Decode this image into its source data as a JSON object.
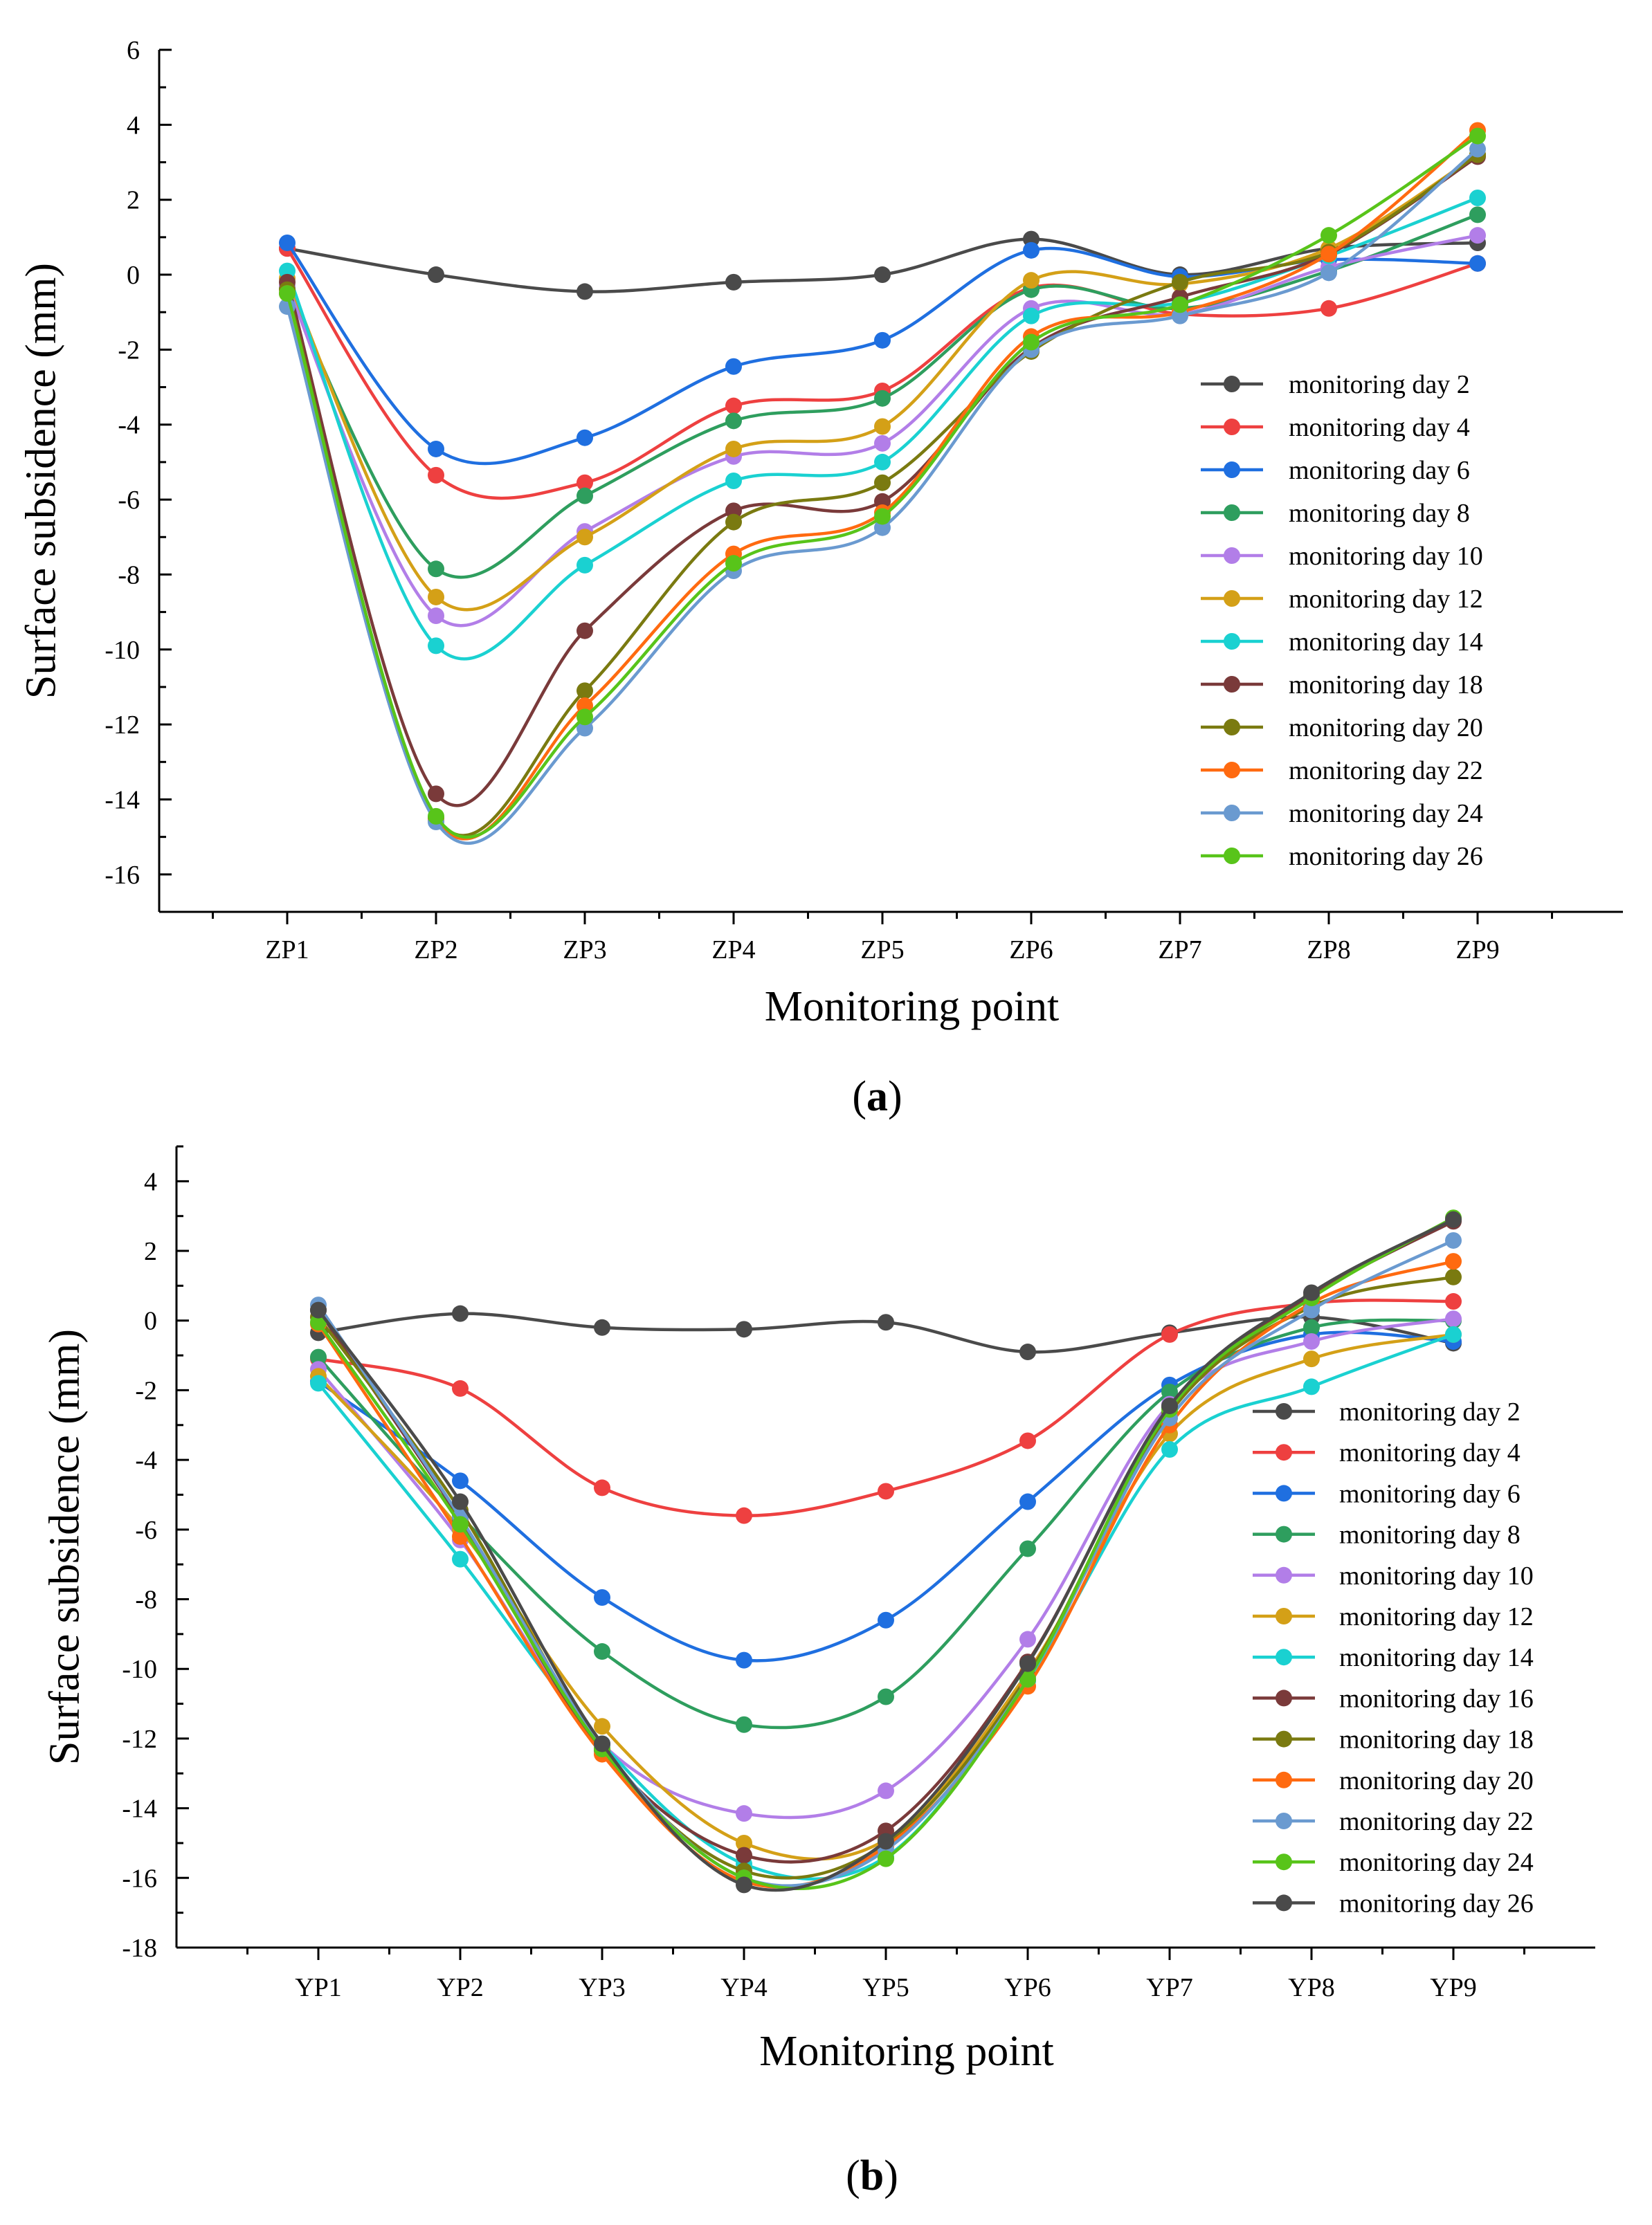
{
  "colors": {
    "monitoring day 2": "#4a4a4a",
    "monitoring day 4": "#ee4040",
    "monitoring day 6": "#1f6fe0",
    "monitoring day 8": "#2e9e5e",
    "monitoring day 10": "#b27ee8",
    "monitoring day 12": "#d4a017",
    "monitoring day 14": "#1ad1d1",
    "monitoring day 16": "#7a3a3a",
    "monitoring day 18": "#7a7a10",
    "monitoring day 20": "#ff6a10",
    "monitoring day 22": "#6a9ad0",
    "monitoring day 24": "#58c41a",
    "monitoring day 26": "#4a4a4a"
  },
  "chart_data": [
    {
      "type": "line",
      "caption": "(a)",
      "caption_bold": "a",
      "xlabel": "Monitoring point",
      "ylabel": "Surface subsidence (mm)",
      "ylim": [
        -17,
        6
      ],
      "yticks": [
        6,
        4,
        2,
        0,
        -2,
        -4,
        -6,
        -8,
        -10,
        -12,
        -14,
        -16
      ],
      "categories": [
        "ZP1",
        "ZP2",
        "ZP3",
        "ZP4",
        "ZP5",
        "ZP6",
        "ZP7",
        "ZP8",
        "ZP9"
      ],
      "series": [
        {
          "name": "monitoring day 2",
          "color": "#4a4a4a",
          "values": [
            0.7,
            0.0,
            -0.45,
            -0.2,
            0.0,
            0.95,
            0.0,
            0.7,
            0.85
          ]
        },
        {
          "name": "monitoring day 4",
          "color": "#ee4040",
          "values": [
            0.7,
            -5.35,
            -5.55,
            -3.5,
            -3.1,
            -0.35,
            -1.05,
            -0.9,
            0.3
          ]
        },
        {
          "name": "monitoring day 6",
          "color": "#1f6fe0",
          "values": [
            0.85,
            -4.65,
            -4.35,
            -2.45,
            -1.75,
            0.65,
            -0.05,
            0.4,
            0.3
          ]
        },
        {
          "name": "monitoring day 8",
          "color": "#2e9e5e",
          "values": [
            -0.35,
            -7.85,
            -5.9,
            -3.9,
            -3.3,
            -0.4,
            -0.9,
            0.1,
            1.6
          ]
        },
        {
          "name": "monitoring day 10",
          "color": "#b27ee8",
          "values": [
            -0.3,
            -9.1,
            -6.85,
            -4.85,
            -4.5,
            -0.9,
            -1.05,
            0.2,
            1.05
          ]
        },
        {
          "name": "monitoring day 12",
          "color": "#d4a017",
          "values": [
            -0.1,
            -8.6,
            -7.0,
            -4.65,
            -4.05,
            -0.15,
            -0.25,
            0.7,
            3.2
          ]
        },
        {
          "name": "monitoring day 14",
          "color": "#1ad1d1",
          "values": [
            0.1,
            -9.9,
            -7.75,
            -5.5,
            -5.0,
            -1.1,
            -0.75,
            0.5,
            2.05
          ]
        },
        {
          "name": "monitoring day 18",
          "color": "#7a3a3a",
          "values": [
            -0.2,
            -13.85,
            -9.5,
            -6.3,
            -6.05,
            -1.95,
            -0.6,
            0.55,
            3.15
          ]
        },
        {
          "name": "monitoring day 20",
          "color": "#7a7a10",
          "values": [
            -0.4,
            -14.5,
            -11.1,
            -6.6,
            -5.55,
            -2.05,
            -0.2,
            0.6,
            3.2
          ]
        },
        {
          "name": "monitoring day 22",
          "color": "#ff6a10",
          "values": [
            -0.5,
            -14.55,
            -11.5,
            -7.45,
            -6.35,
            -1.65,
            -1.0,
            0.55,
            3.85
          ]
        },
        {
          "name": "monitoring day 24",
          "color": "#6a9ad0",
          "values": [
            -0.85,
            -14.6,
            -12.1,
            -7.9,
            -6.75,
            -2.0,
            -1.1,
            0.05,
            3.35
          ]
        },
        {
          "name": "monitoring day 26",
          "color": "#58c41a",
          "values": [
            -0.5,
            -14.45,
            -11.8,
            -7.7,
            -6.45,
            -1.8,
            -0.8,
            1.05,
            3.7
          ]
        }
      ]
    },
    {
      "type": "line",
      "caption": "(b)",
      "caption_bold": "b",
      "xlabel": "Monitoring point",
      "ylabel": "Surface subsidence (mm)",
      "ylim": [
        -18,
        5
      ],
      "yticks": [
        4,
        2,
        0,
        -2,
        -4,
        -6,
        -8,
        -10,
        -12,
        -14,
        -16,
        -18
      ],
      "categories": [
        "YP1",
        "YP2",
        "YP3",
        "YP4",
        "YP5",
        "YP6",
        "YP7",
        "YP8",
        "YP9"
      ],
      "series": [
        {
          "name": "monitoring day 2",
          "color": "#4a4a4a",
          "values": [
            -0.35,
            0.2,
            -0.2,
            -0.25,
            -0.05,
            -0.9,
            -0.35,
            0.1,
            -0.65
          ]
        },
        {
          "name": "monitoring day 4",
          "color": "#ee4040",
          "values": [
            -1.1,
            -1.95,
            -4.8,
            -5.6,
            -4.9,
            -3.45,
            -0.4,
            0.5,
            0.55
          ]
        },
        {
          "name": "monitoring day 6",
          "color": "#1f6fe0",
          "values": [
            -1.75,
            -4.6,
            -7.95,
            -9.75,
            -8.6,
            -5.2,
            -1.85,
            -0.4,
            -0.6
          ]
        },
        {
          "name": "monitoring day 8",
          "color": "#2e9e5e",
          "values": [
            -1.05,
            -5.6,
            -9.5,
            -11.6,
            -10.8,
            -6.55,
            -2.05,
            -0.2,
            0.0
          ]
        },
        {
          "name": "monitoring day 10",
          "color": "#b27ee8",
          "values": [
            -1.4,
            -6.3,
            -12.15,
            -14.15,
            -13.5,
            -9.15,
            -2.4,
            -0.6,
            0.05
          ]
        },
        {
          "name": "monitoring day 12",
          "color": "#d4a017",
          "values": [
            -1.6,
            -6.0,
            -11.65,
            -15.0,
            -14.9,
            -10.1,
            -3.25,
            -1.1,
            -0.4
          ]
        },
        {
          "name": "monitoring day 14",
          "color": "#1ad1d1",
          "values": [
            -1.8,
            -6.85,
            -12.15,
            -15.6,
            -15.4,
            -10.35,
            -3.7,
            -1.9,
            -0.4
          ]
        },
        {
          "name": "monitoring day 16",
          "color": "#7a3a3a",
          "values": [
            0.3,
            -5.7,
            -12.35,
            -15.35,
            -14.65,
            -9.8,
            -2.5,
            0.7,
            2.85
          ]
        },
        {
          "name": "monitoring day 18",
          "color": "#7a7a10",
          "values": [
            0.1,
            -5.45,
            -12.3,
            -15.8,
            -15.0,
            -10.2,
            -2.65,
            0.4,
            1.25
          ]
        },
        {
          "name": "monitoring day 20",
          "color": "#ff6a10",
          "values": [
            -0.1,
            -6.2,
            -12.45,
            -16.1,
            -15.1,
            -10.5,
            -3.0,
            0.5,
            1.7
          ]
        },
        {
          "name": "monitoring day 22",
          "color": "#6a9ad0",
          "values": [
            0.45,
            -5.65,
            -12.2,
            -16.0,
            -15.2,
            -10.3,
            -2.8,
            0.3,
            2.3
          ]
        },
        {
          "name": "monitoring day 24",
          "color": "#58c41a",
          "values": [
            -0.05,
            -5.85,
            -12.3,
            -16.0,
            -15.45,
            -10.3,
            -2.55,
            0.65,
            2.95
          ]
        },
        {
          "name": "monitoring day 26",
          "color": "#4a4a4a",
          "values": [
            0.3,
            -5.2,
            -12.15,
            -16.2,
            -14.95,
            -9.85,
            -2.45,
            0.8,
            2.9
          ]
        }
      ]
    }
  ]
}
